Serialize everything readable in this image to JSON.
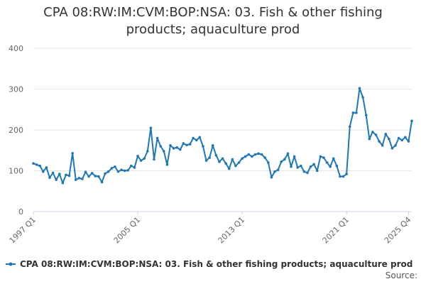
{
  "chart_data": {
    "type": "line",
    "title": "CPA 08:RW:IM:CVM:BOP:NSA: 03. Fish & other fishing products; aquaculture prod",
    "title_lines": [
      "CPA 08:RW:IM:CVM:BOP:NSA: 03. Fish & other fishing",
      "products; aquaculture prod"
    ],
    "xlabel": "",
    "ylabel": "",
    "ylim": [
      0,
      400
    ],
    "yticks": [
      "0",
      "100",
      "200",
      "300",
      "400"
    ],
    "xticks": [
      {
        "label": "1997 Q1",
        "index": 0
      },
      {
        "label": "2005 Q1",
        "index": 32
      },
      {
        "label": "2013 Q1",
        "index": 64
      },
      {
        "label": "2021 Q1",
        "index": 96
      },
      {
        "label": "2025 Q4",
        "index": 115
      }
    ],
    "grid": true,
    "legend_position": "bottom",
    "source_label": "Source:",
    "series": [
      {
        "name": "CPA 08:RW:IM:CVM:BOP:NSA: 03. Fish & other fishing products; aquaculture prod",
        "color": "#1f77b4",
        "values": [
          118,
          115,
          112,
          98,
          108,
          83,
          95,
          78,
          92,
          70,
          90,
          88,
          143,
          78,
          82,
          80,
          97,
          86,
          94,
          87,
          86,
          72,
          93,
          98,
          106,
          110,
          98,
          102,
          100,
          101,
          112,
          108,
          136,
          125,
          130,
          148,
          205,
          128,
          180,
          160,
          148,
          115,
          162,
          155,
          157,
          152,
          167,
          163,
          165,
          180,
          175,
          182,
          160,
          125,
          132,
          162,
          138,
          122,
          130,
          118,
          105,
          128,
          112,
          120,
          130,
          135,
          140,
          135,
          140,
          142,
          140,
          132,
          120,
          84,
          98,
          102,
          122,
          128,
          142,
          110,
          135,
          108,
          112,
          98,
          95,
          110,
          116,
          100,
          135,
          132,
          120,
          110,
          130,
          112,
          86,
          86,
          92,
          208,
          242,
          242,
          302,
          280,
          236,
          178,
          195,
          188,
          172,
          162,
          190,
          178,
          155,
          162,
          180,
          175,
          182,
          172,
          222
        ]
      }
    ]
  }
}
